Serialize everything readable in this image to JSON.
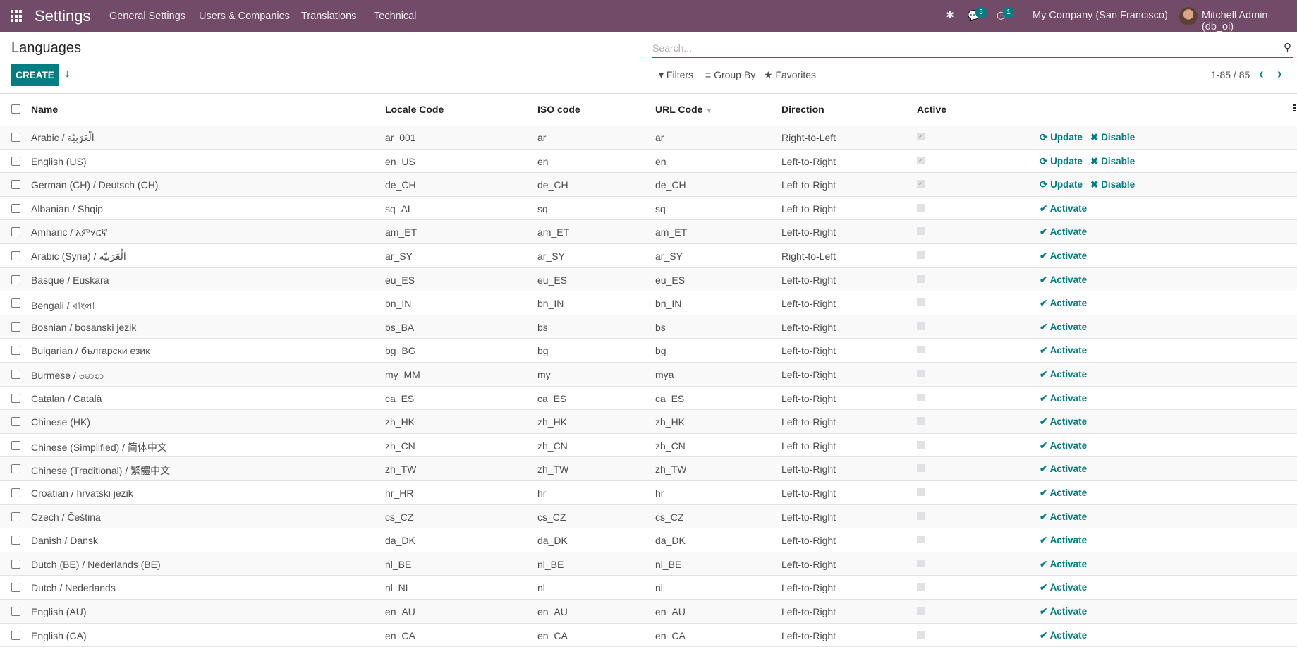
{
  "navbar": {
    "app": "Settings",
    "menu": [
      "General Settings",
      "Users & Companies",
      "Translations",
      "Technical"
    ],
    "messages_count": "5",
    "activities_count": "1",
    "company": "My Company (San Francisco)",
    "user": "Mitchell Admin (db_oi)"
  },
  "page": {
    "title": "Languages",
    "create_label": "CREATE"
  },
  "search": {
    "placeholder": "Search...",
    "filters": "Filters",
    "group_by": "Group By",
    "favorites": "Favorites",
    "pager": "1-85 / 85"
  },
  "columns": {
    "name": "Name",
    "locale": "Locale Code",
    "iso": "ISO code",
    "url": "URL Code",
    "direction": "Direction",
    "active": "Active"
  },
  "actions": {
    "update": "Update",
    "disable": "Disable",
    "activate": "Activate"
  },
  "accent": "#017e84",
  "brand": "#714B67",
  "rows": [
    {
      "name": "Arabic / الْعَرَبيّة",
      "locale": "ar_001",
      "iso": "ar",
      "url": "ar",
      "direction": "Right-to-Left",
      "active": true
    },
    {
      "name": "English (US)",
      "locale": "en_US",
      "iso": "en",
      "url": "en",
      "direction": "Left-to-Right",
      "active": true
    },
    {
      "name": "German (CH) / Deutsch (CH)",
      "locale": "de_CH",
      "iso": "de_CH",
      "url": "de_CH",
      "direction": "Left-to-Right",
      "active": true
    },
    {
      "name": "Albanian / Shqip",
      "locale": "sq_AL",
      "iso": "sq",
      "url": "sq",
      "direction": "Left-to-Right",
      "active": false
    },
    {
      "name": "Amharic / አምሃርኛ",
      "locale": "am_ET",
      "iso": "am_ET",
      "url": "am_ET",
      "direction": "Left-to-Right",
      "active": false
    },
    {
      "name": "Arabic (Syria) / الْعَرَبيّة",
      "locale": "ar_SY",
      "iso": "ar_SY",
      "url": "ar_SY",
      "direction": "Right-to-Left",
      "active": false
    },
    {
      "name": "Basque / Euskara",
      "locale": "eu_ES",
      "iso": "eu_ES",
      "url": "eu_ES",
      "direction": "Left-to-Right",
      "active": false
    },
    {
      "name": "Bengali / বাংলা",
      "locale": "bn_IN",
      "iso": "bn_IN",
      "url": "bn_IN",
      "direction": "Left-to-Right",
      "active": false
    },
    {
      "name": "Bosnian / bosanski jezik",
      "locale": "bs_BA",
      "iso": "bs",
      "url": "bs",
      "direction": "Left-to-Right",
      "active": false
    },
    {
      "name": "Bulgarian / български език",
      "locale": "bg_BG",
      "iso": "bg",
      "url": "bg",
      "direction": "Left-to-Right",
      "active": false
    },
    {
      "name": "Burmese / ဗမာစာ",
      "locale": "my_MM",
      "iso": "my",
      "url": "mya",
      "direction": "Left-to-Right",
      "active": false
    },
    {
      "name": "Catalan / Català",
      "locale": "ca_ES",
      "iso": "ca_ES",
      "url": "ca_ES",
      "direction": "Left-to-Right",
      "active": false
    },
    {
      "name": "Chinese (HK)",
      "locale": "zh_HK",
      "iso": "zh_HK",
      "url": "zh_HK",
      "direction": "Left-to-Right",
      "active": false
    },
    {
      "name": "Chinese (Simplified) / 简体中文",
      "locale": "zh_CN",
      "iso": "zh_CN",
      "url": "zh_CN",
      "direction": "Left-to-Right",
      "active": false
    },
    {
      "name": "Chinese (Traditional) / 繁體中文",
      "locale": "zh_TW",
      "iso": "zh_TW",
      "url": "zh_TW",
      "direction": "Left-to-Right",
      "active": false
    },
    {
      "name": "Croatian / hrvatski jezik",
      "locale": "hr_HR",
      "iso": "hr",
      "url": "hr",
      "direction": "Left-to-Right",
      "active": false
    },
    {
      "name": "Czech / Čeština",
      "locale": "cs_CZ",
      "iso": "cs_CZ",
      "url": "cs_CZ",
      "direction": "Left-to-Right",
      "active": false
    },
    {
      "name": "Danish / Dansk",
      "locale": "da_DK",
      "iso": "da_DK",
      "url": "da_DK",
      "direction": "Left-to-Right",
      "active": false
    },
    {
      "name": "Dutch (BE) / Nederlands (BE)",
      "locale": "nl_BE",
      "iso": "nl_BE",
      "url": "nl_BE",
      "direction": "Left-to-Right",
      "active": false
    },
    {
      "name": "Dutch / Nederlands",
      "locale": "nl_NL",
      "iso": "nl",
      "url": "nl",
      "direction": "Left-to-Right",
      "active": false
    },
    {
      "name": "English (AU)",
      "locale": "en_AU",
      "iso": "en_AU",
      "url": "en_AU",
      "direction": "Left-to-Right",
      "active": false
    },
    {
      "name": "English (CA)",
      "locale": "en_CA",
      "iso": "en_CA",
      "url": "en_CA",
      "direction": "Left-to-Right",
      "active": false
    }
  ]
}
